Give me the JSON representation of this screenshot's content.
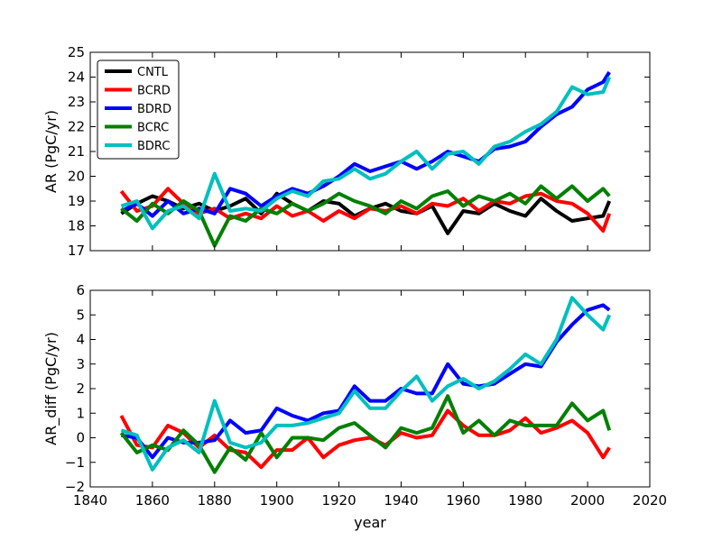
{
  "chart_data": [
    {
      "type": "line",
      "ylabel": "AR (PgC/yr)",
      "xlabel": "",
      "xlim": [
        1840,
        2020
      ],
      "ylim": [
        17,
        25
      ],
      "yticks": [
        17,
        18,
        19,
        20,
        21,
        22,
        23,
        24,
        25
      ],
      "xticks": [
        1840,
        1860,
        1880,
        1900,
        1920,
        1940,
        1960,
        1980,
        2000,
        2020
      ],
      "legend": "top-left",
      "series": [
        {
          "name": "CNTL",
          "color": "#000000",
          "x": [
            1850,
            1855,
            1860,
            1865,
            1870,
            1875,
            1880,
            1885,
            1890,
            1895,
            1900,
            1905,
            1910,
            1915,
            1920,
            1925,
            1930,
            1935,
            1940,
            1945,
            1950,
            1955,
            1960,
            1965,
            1970,
            1975,
            1980,
            1985,
            1990,
            1995,
            2000,
            2005,
            2007
          ],
          "y": [
            18.5,
            18.9,
            19.2,
            19.0,
            18.7,
            18.9,
            18.6,
            18.8,
            19.1,
            18.5,
            19.3,
            18.9,
            18.6,
            19.0,
            18.9,
            18.4,
            18.7,
            18.9,
            18.6,
            18.5,
            18.8,
            17.7,
            18.6,
            18.5,
            18.9,
            18.6,
            18.4,
            19.1,
            18.6,
            18.2,
            18.3,
            18.4,
            19.0
          ]
        },
        {
          "name": "BCRD",
          "color": "#ff0000",
          "x": [
            1850,
            1855,
            1860,
            1865,
            1870,
            1875,
            1880,
            1885,
            1890,
            1895,
            1900,
            1905,
            1910,
            1915,
            1920,
            1925,
            1930,
            1935,
            1940,
            1945,
            1950,
            1955,
            1960,
            1965,
            1970,
            1975,
            1980,
            1985,
            1990,
            1995,
            2000,
            2005,
            2007
          ],
          "y": [
            19.4,
            18.6,
            18.8,
            19.5,
            18.9,
            18.5,
            18.7,
            18.3,
            18.5,
            18.3,
            18.8,
            18.4,
            18.6,
            18.2,
            18.6,
            18.3,
            18.7,
            18.6,
            18.8,
            18.5,
            18.9,
            18.8,
            19.1,
            18.6,
            19.0,
            18.9,
            19.2,
            19.3,
            19.0,
            18.9,
            18.5,
            17.8,
            18.5
          ]
        },
        {
          "name": "BDRD",
          "color": "#0000ff",
          "x": [
            1850,
            1855,
            1860,
            1865,
            1870,
            1875,
            1880,
            1885,
            1890,
            1895,
            1900,
            1905,
            1910,
            1915,
            1920,
            1925,
            1930,
            1935,
            1940,
            1945,
            1950,
            1955,
            1960,
            1965,
            1970,
            1975,
            1980,
            1985,
            1990,
            1995,
            2000,
            2005,
            2007
          ],
          "y": [
            18.6,
            18.9,
            18.4,
            19.0,
            18.5,
            18.7,
            18.5,
            19.5,
            19.3,
            18.8,
            19.2,
            19.5,
            19.3,
            19.6,
            20.0,
            20.5,
            20.2,
            20.4,
            20.6,
            20.3,
            20.6,
            21.0,
            20.8,
            20.6,
            21.1,
            21.2,
            21.4,
            22.0,
            22.5,
            22.8,
            23.5,
            23.8,
            24.2
          ]
        },
        {
          "name": "BCRC",
          "color": "#008000",
          "x": [
            1850,
            1855,
            1860,
            1865,
            1870,
            1875,
            1880,
            1885,
            1890,
            1895,
            1900,
            1905,
            1910,
            1915,
            1920,
            1925,
            1930,
            1935,
            1940,
            1945,
            1950,
            1955,
            1960,
            1965,
            1970,
            1975,
            1980,
            1985,
            1990,
            1995,
            2000,
            2005,
            2007
          ],
          "y": [
            18.7,
            18.2,
            18.9,
            18.5,
            19.0,
            18.6,
            17.2,
            18.4,
            18.2,
            18.7,
            18.5,
            18.9,
            18.6,
            18.9,
            19.3,
            19.0,
            18.8,
            18.5,
            19.0,
            18.7,
            19.2,
            19.4,
            18.8,
            19.2,
            19.0,
            19.3,
            18.9,
            19.6,
            19.1,
            19.6,
            19.0,
            19.5,
            19.2
          ]
        },
        {
          "name": "BDRC",
          "color": "#00bfbf",
          "x": [
            1850,
            1855,
            1860,
            1865,
            1870,
            1875,
            1880,
            1885,
            1890,
            1895,
            1900,
            1905,
            1910,
            1915,
            1920,
            1925,
            1930,
            1935,
            1940,
            1945,
            1950,
            1955,
            1960,
            1965,
            1970,
            1975,
            1980,
            1985,
            1990,
            1995,
            2000,
            2005,
            2007
          ],
          "y": [
            18.8,
            19.0,
            17.9,
            18.6,
            18.8,
            18.3,
            20.1,
            18.6,
            18.7,
            18.6,
            19.1,
            19.4,
            19.2,
            19.8,
            19.9,
            20.3,
            19.9,
            20.1,
            20.6,
            21.0,
            20.3,
            20.9,
            21.0,
            20.5,
            21.2,
            21.4,
            21.8,
            22.1,
            22.6,
            23.6,
            23.3,
            23.4,
            24.0
          ]
        }
      ]
    },
    {
      "type": "line",
      "ylabel": "AR_diff (PgC/yr)",
      "xlabel": "year",
      "xlim": [
        1840,
        2020
      ],
      "ylim": [
        -2,
        6
      ],
      "yticks": [
        -2,
        -1,
        0,
        1,
        2,
        3,
        4,
        5,
        6
      ],
      "xticks": [
        1840,
        1860,
        1880,
        1900,
        1920,
        1940,
        1960,
        1980,
        2000,
        2020
      ],
      "xtick_labels": [
        "1840",
        "1860",
        "1880",
        "1900",
        "1920",
        "1940",
        "1960",
        "1980",
        "2000",
        "2020"
      ],
      "series": [
        {
          "name": "BCRD",
          "color": "#ff0000",
          "x": [
            1850,
            1855,
            1860,
            1865,
            1870,
            1875,
            1880,
            1885,
            1890,
            1895,
            1900,
            1905,
            1910,
            1915,
            1920,
            1925,
            1930,
            1935,
            1940,
            1945,
            1950,
            1955,
            1960,
            1965,
            1970,
            1975,
            1980,
            1985,
            1990,
            1995,
            2000,
            2005,
            2007
          ],
          "y": [
            0.9,
            -0.3,
            -0.4,
            0.5,
            0.2,
            -0.4,
            0.1,
            -0.5,
            -0.6,
            -1.2,
            -0.5,
            -0.5,
            0.0,
            -0.8,
            -0.3,
            -0.1,
            0.0,
            -0.3,
            0.2,
            0.0,
            0.1,
            1.1,
            0.5,
            0.1,
            0.1,
            0.3,
            0.8,
            0.2,
            0.4,
            0.7,
            0.2,
            -0.8,
            -0.4
          ]
        },
        {
          "name": "BDRD",
          "color": "#0000ff",
          "x": [
            1850,
            1855,
            1860,
            1865,
            1870,
            1875,
            1880,
            1885,
            1890,
            1895,
            1900,
            1905,
            1910,
            1915,
            1920,
            1925,
            1930,
            1935,
            1940,
            1945,
            1950,
            1955,
            1960,
            1965,
            1970,
            1975,
            1980,
            1985,
            1990,
            1995,
            2000,
            2005,
            2007
          ],
          "y": [
            0.1,
            0.0,
            -0.8,
            0.0,
            -0.2,
            -0.2,
            -0.1,
            0.7,
            0.2,
            0.3,
            1.2,
            0.9,
            0.7,
            1.0,
            1.1,
            2.1,
            1.5,
            1.5,
            2.0,
            1.8,
            1.8,
            3.0,
            2.2,
            2.1,
            2.2,
            2.6,
            3.0,
            2.9,
            3.9,
            4.6,
            5.2,
            5.4,
            5.2
          ]
        },
        {
          "name": "BCRC",
          "color": "#008000",
          "x": [
            1850,
            1855,
            1860,
            1865,
            1870,
            1875,
            1880,
            1885,
            1890,
            1895,
            1900,
            1905,
            1910,
            1915,
            1920,
            1925,
            1930,
            1935,
            1940,
            1945,
            1950,
            1955,
            1960,
            1965,
            1970,
            1975,
            1980,
            1985,
            1990,
            1995,
            2000,
            2005,
            2007
          ],
          "y": [
            0.2,
            -0.6,
            -0.3,
            -0.5,
            0.3,
            -0.3,
            -1.4,
            -0.4,
            -0.9,
            0.2,
            -0.8,
            0.0,
            0.0,
            -0.1,
            0.4,
            0.6,
            0.1,
            -0.4,
            0.4,
            0.2,
            0.4,
            1.7,
            0.2,
            0.7,
            0.1,
            0.7,
            0.5,
            0.5,
            0.5,
            1.4,
            0.7,
            1.1,
            0.3
          ]
        },
        {
          "name": "BDRC",
          "color": "#00bfbf",
          "x": [
            1850,
            1855,
            1860,
            1865,
            1870,
            1875,
            1880,
            1885,
            1890,
            1895,
            1900,
            1905,
            1910,
            1915,
            1920,
            1925,
            1930,
            1935,
            1940,
            1945,
            1950,
            1955,
            1960,
            1965,
            1970,
            1975,
            1980,
            1985,
            1990,
            1995,
            2000,
            2005,
            2007
          ],
          "y": [
            0.3,
            0.1,
            -1.3,
            -0.4,
            -0.1,
            -0.6,
            1.5,
            -0.2,
            -0.4,
            -0.2,
            0.5,
            0.5,
            0.6,
            0.8,
            1.0,
            1.9,
            1.2,
            1.2,
            1.9,
            2.5,
            1.5,
            2.1,
            2.4,
            2.0,
            2.3,
            2.8,
            3.4,
            3.0,
            4.0,
            5.7,
            5.0,
            4.4,
            5.0
          ]
        }
      ]
    }
  ]
}
